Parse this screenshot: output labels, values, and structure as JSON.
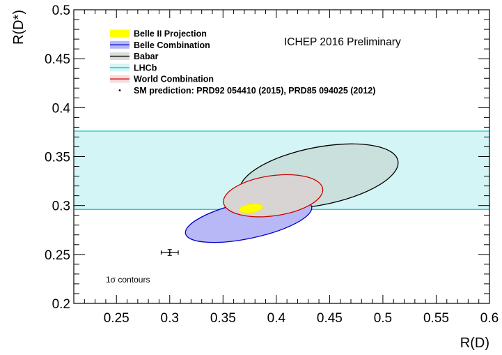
{
  "chart_data": {
    "type": "contour",
    "xlabel": "R(D)",
    "ylabel": "R(D*)",
    "xlim": [
      0.21,
      0.6
    ],
    "ylim": [
      0.2,
      0.5
    ],
    "x_ticks": [
      "0.25",
      "0.3",
      "0.35",
      "0.4",
      "0.45",
      "0.5",
      "0.55",
      "0.6"
    ],
    "y_ticks": [
      "0.2",
      "0.25",
      "0.3",
      "0.35",
      "0.4",
      "0.45",
      "0.5"
    ],
    "annotation": "ICHEP 2016 Preliminary",
    "note": "1σ contours",
    "grid": false,
    "legend": [
      {
        "label": "Belle II Projection",
        "fill": "#ffff00",
        "stroke": "#ffff00"
      },
      {
        "label": "Belle Combination",
        "fill": "#b8b8f6",
        "stroke": "#0000cc"
      },
      {
        "label": "Babar",
        "fill": "#dcdcdc",
        "stroke": "#000000"
      },
      {
        "label": "LHCb",
        "fill": "#d4f5f5",
        "stroke": "#00cccc"
      },
      {
        "label": "World Combination",
        "fill": "#f8dcdc",
        "stroke": "#cc0000"
      },
      {
        "label": "SM prediction: PRD92 054410 (2015), PRD85 094025 (2012)",
        "marker": "dot"
      }
    ],
    "series": [
      {
        "name": "LHCb",
        "kind": "band",
        "y_low": 0.296,
        "y_high": 0.376,
        "fill": "#d4f5f5",
        "stroke": "#00cccc"
      },
      {
        "name": "Babar",
        "kind": "ellipse",
        "cx": 0.44,
        "cy": 0.33,
        "rx": 0.0755,
        "ry": 0.0295,
        "angle_deg": -11,
        "fill": "#c9e0dd",
        "stroke": "#000000"
      },
      {
        "name": "Belle Combination",
        "kind": "ellipse",
        "cx": 0.374,
        "cy": 0.285,
        "rx": 0.0605,
        "ry": 0.0185,
        "angle_deg": -12,
        "fill": "#b8b8f6",
        "stroke": "#0000cc"
      },
      {
        "name": "World Combination",
        "kind": "ellipse",
        "cx": 0.397,
        "cy": 0.31,
        "rx": 0.047,
        "ry": 0.0205,
        "angle_deg": -8,
        "fill": "#d8d4d4",
        "stroke": "#cc0000"
      },
      {
        "name": "Belle II Projection",
        "kind": "ellipse",
        "cx": 0.376,
        "cy": 0.297,
        "rx": 0.011,
        "ry": 0.0043,
        "angle_deg": -8,
        "fill": "#ffff00",
        "stroke": "#ffee00"
      },
      {
        "name": "SM prediction",
        "kind": "point",
        "x": 0.3,
        "y": 0.252,
        "xerr": 0.008,
        "yerr": 0.003
      }
    ]
  }
}
